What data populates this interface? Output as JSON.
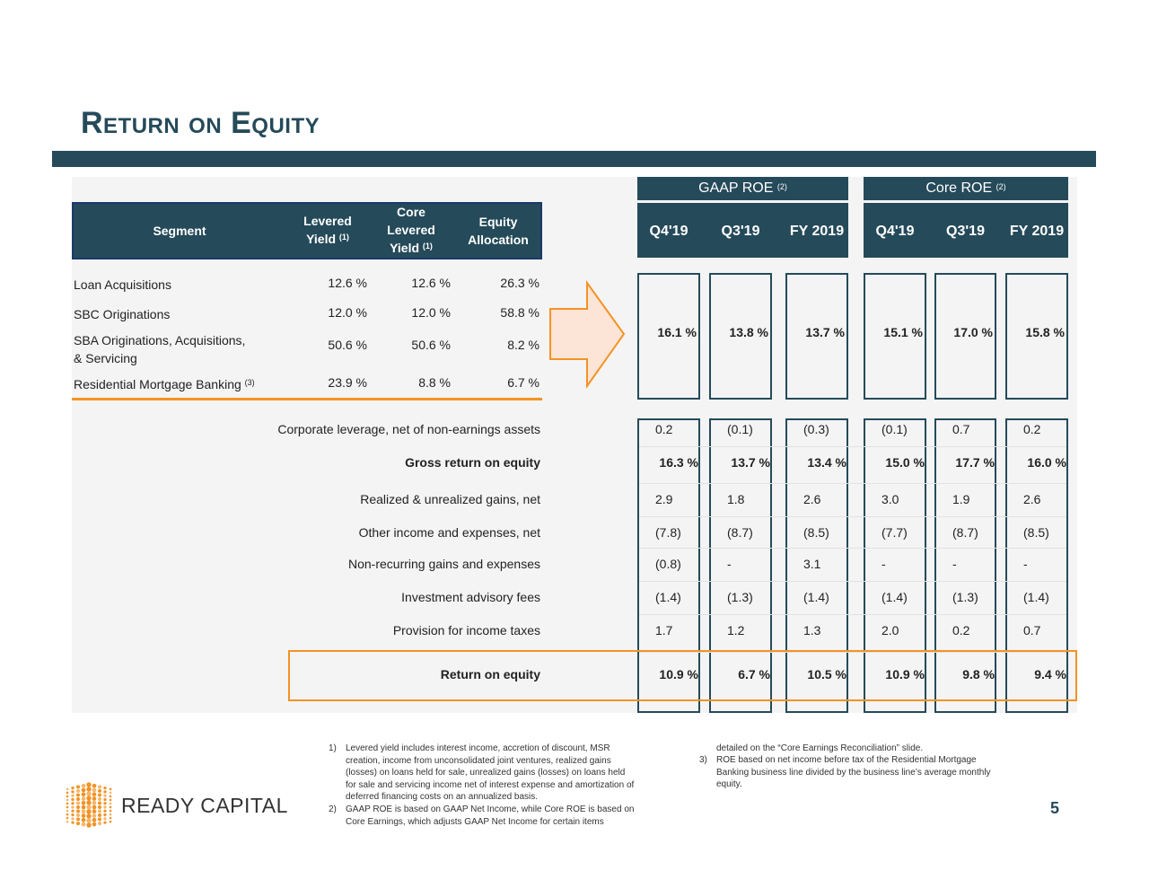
{
  "title": "Return on Equity",
  "segment_table": {
    "headers": {
      "segment": "Segment",
      "levered_yield": "Levered Yield",
      "core_levered_yield_1": "Core",
      "core_levered_yield_2": "Levered",
      "core_levered_yield_3": "Yield",
      "equity_allocation_1": "Equity",
      "equity_allocation_2": "Allocation",
      "levered_yield_1": "Levered",
      "levered_yield_2": "Yield",
      "fn1": "(1)"
    },
    "rows": [
      {
        "name": "Loan Acquisitions",
        "name2": "",
        "levered": "12.6 %",
        "core": "12.6 %",
        "equity": "26.3 %"
      },
      {
        "name": "SBC Originations",
        "name2": "",
        "levered": "12.0 %",
        "core": "12.0 %",
        "equity": "58.8 %"
      },
      {
        "name": "SBA Originations, Acquisitions,",
        "name2": "& Servicing",
        "levered": "50.6 %",
        "core": "50.6 %",
        "equity": "8.2 %"
      },
      {
        "name": "Residential Mortgage Banking",
        "name2": "",
        "fn": "(3)",
        "levered": "23.9 %",
        "core": "8.8 %",
        "equity": "6.7 %"
      }
    ]
  },
  "roe_headers": {
    "gaap": "GAAP ROE",
    "core": "Core ROE",
    "fn": "(2)",
    "periods": [
      "Q4'19",
      "Q3'19",
      "FY 2019",
      "Q4'19",
      "Q3'19",
      "FY 2019"
    ]
  },
  "segment_roe": [
    "16.1 %",
    "13.8 %",
    "13.7 %",
    "15.1 %",
    "17.0 %",
    "15.8 %"
  ],
  "rows": [
    {
      "label": "Corporate leverage, net of non-earnings assets",
      "values": [
        "0.2",
        "(0.1)",
        "(0.3)",
        "(0.1)",
        "0.7",
        "0.2"
      ],
      "bold": false
    },
    {
      "label": "Gross return on equity",
      "values": [
        "16.3 %",
        "13.7 %",
        "13.4 %",
        "15.0 %",
        "17.7 %",
        "16.0 %"
      ],
      "bold": true
    },
    {
      "label": "Realized & unrealized gains, net",
      "values": [
        "2.9",
        "1.8",
        "2.6",
        "3.0",
        "1.9",
        "2.6"
      ],
      "bold": false
    },
    {
      "label": "Other income and expenses, net",
      "values": [
        "(7.8)",
        "(8.7)",
        "(8.5)",
        "(7.7)",
        "(8.7)",
        "(8.5)"
      ],
      "bold": false
    },
    {
      "label": "Non-recurring gains and expenses",
      "values": [
        "(0.8)",
        "-",
        "3.1",
        "-",
        "-",
        "-"
      ],
      "bold": false
    },
    {
      "label": "Investment advisory fees",
      "values": [
        "(1.4)",
        "(1.3)",
        "(1.4)",
        "(1.4)",
        "(1.3)",
        "(1.4)"
      ],
      "bold": false
    },
    {
      "label": "Provision for income taxes",
      "values": [
        "1.7",
        "1.2",
        "1.3",
        "2.0",
        "0.2",
        "0.7"
      ],
      "bold": false
    },
    {
      "label": "Return on equity",
      "values": [
        "10.9 %",
        "6.7 %",
        "10.5 %",
        "10.9 %",
        "9.8 %",
        "9.4 %"
      ],
      "bold": true
    }
  ],
  "footnotes": {
    "f1_num": "1)",
    "f1": [
      "Levered yield includes interest income, accretion of discount, MSR",
      "creation, income from unconsolidated joint ventures, realized gains",
      "(losses) on loans held for sale, unrealized gains (losses) on loans held",
      "for sale and servicing income net of interest expense and amortization of",
      "deferred financing costs on an annualized basis."
    ],
    "f2_num": "2)",
    "f2": [
      "GAAP ROE is based on GAAP Net Income, while Core ROE is based on",
      "Core Earnings, which adjusts GAAP Net Income for certain items",
      "detailed on  the “Core Earnings Reconciliation” slide."
    ],
    "f3_num": "3)",
    "f3": [
      "ROE based on net income before tax of the Residential Mortgage",
      "Banking business line divided by the business line’s average monthly",
      "equity."
    ]
  },
  "logo": {
    "text": "READY CAPITAL"
  },
  "page_number": "5",
  "colors": {
    "navy": "#254a5a",
    "orange": "#f39325",
    "arrow_fill": "#fce4d6"
  }
}
